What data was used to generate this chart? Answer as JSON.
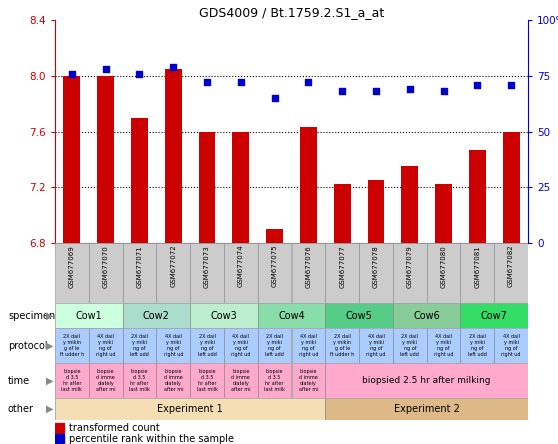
{
  "title": "GDS4009 / Bt.1759.2.S1_a_at",
  "samples": [
    "GSM677069",
    "GSM677070",
    "GSM677071",
    "GSM677072",
    "GSM677073",
    "GSM677074",
    "GSM677075",
    "GSM677076",
    "GSM677077",
    "GSM677078",
    "GSM677079",
    "GSM677080",
    "GSM677081",
    "GSM677082"
  ],
  "transformed_count": [
    8.0,
    8.0,
    7.7,
    8.05,
    7.6,
    7.6,
    6.9,
    7.63,
    7.22,
    7.25,
    7.35,
    7.22,
    7.47,
    7.6
  ],
  "percentile_rank": [
    76,
    78,
    76,
    79,
    72,
    72,
    65,
    72,
    68,
    68,
    69,
    68,
    71,
    71
  ],
  "ylim_left": [
    6.8,
    8.4
  ],
  "ylim_right": [
    0,
    100
  ],
  "yticks_left": [
    6.8,
    7.2,
    7.6,
    8.0,
    8.4
  ],
  "yticks_right": [
    0,
    25,
    50,
    75,
    100
  ],
  "bar_color": "#cc0000",
  "dot_color": "#0000cc",
  "bar_width": 0.5,
  "specimen_colors": [
    "#ccffdd",
    "#aaddcc",
    "#bbeecc",
    "#88ddaa",
    "#55cc88",
    "#88cc99",
    "#33dd66"
  ],
  "specimen_groups": [
    {
      "text": "Cow1",
      "start": 0,
      "end": 2
    },
    {
      "text": "Cow2",
      "start": 2,
      "end": 4
    },
    {
      "text": "Cow3",
      "start": 4,
      "end": 6
    },
    {
      "text": "Cow4",
      "start": 6,
      "end": 8
    },
    {
      "text": "Cow5",
      "start": 8,
      "end": 10
    },
    {
      "text": "Cow6",
      "start": 10,
      "end": 12
    },
    {
      "text": "Cow7",
      "start": 12,
      "end": 14
    }
  ],
  "protocol_color": "#aaccff",
  "prot_texts": [
    "2X dail\ny mikin\ng of le\nft udder h",
    "4X dail\ny miki\nng of\nright ud",
    "2X dail\ny miki\nng of\nleft udd",
    "4X dail\ny miki\nng of\nright ud",
    "2X dail\ny miki\nng of\nleft udd",
    "4X dail\ny miki\nng of\nright ud",
    "2X dail\ny miki\nng of\nleft udd",
    "4X dail\ny miki\nng of\nright ud",
    "2X dail\ny mikin\ng of le\nft udder h",
    "4X dail\ny miki\nng of\nright ud",
    "2X dail\ny miki\nng of\nleft udd",
    "4X dail\ny miki\nng of\nright ud",
    "2X dail\ny miki\nng of\nleft udd",
    "4X dail\ny miki\nng of\nright ud"
  ],
  "time_color": "#ffaacc",
  "time_texts_exp1": [
    "biopsie\nd 3.5\nhr after\nlast milk",
    "biopsie\nd imme\ndiately\nafter mi",
    "biopsie\nd 3.5\nhr after\nlast milk",
    "biopsie\nd imme\ndiately\nafter mi",
    "biopsie\nd 3.5\nhr after\nlast milk",
    "biopsie\nd imme\ndiately\nafter mi",
    "biopsie\nd 3.5\nhr after\nlast milk",
    "biopsie\nd imme\ndiately\nafter mi"
  ],
  "time_exp2_text": "biopsied 2.5 hr after milking",
  "other_groups": [
    {
      "text": "Experiment 1",
      "start": 0,
      "end": 8,
      "color": "#f5deb3"
    },
    {
      "text": "Experiment 2",
      "start": 8,
      "end": 14,
      "color": "#deb887"
    }
  ],
  "sample_bg_color": "#cccccc",
  "grid_color": "#000000",
  "left_axis_color": "#cc0000",
  "right_axis_color": "#0000cc"
}
